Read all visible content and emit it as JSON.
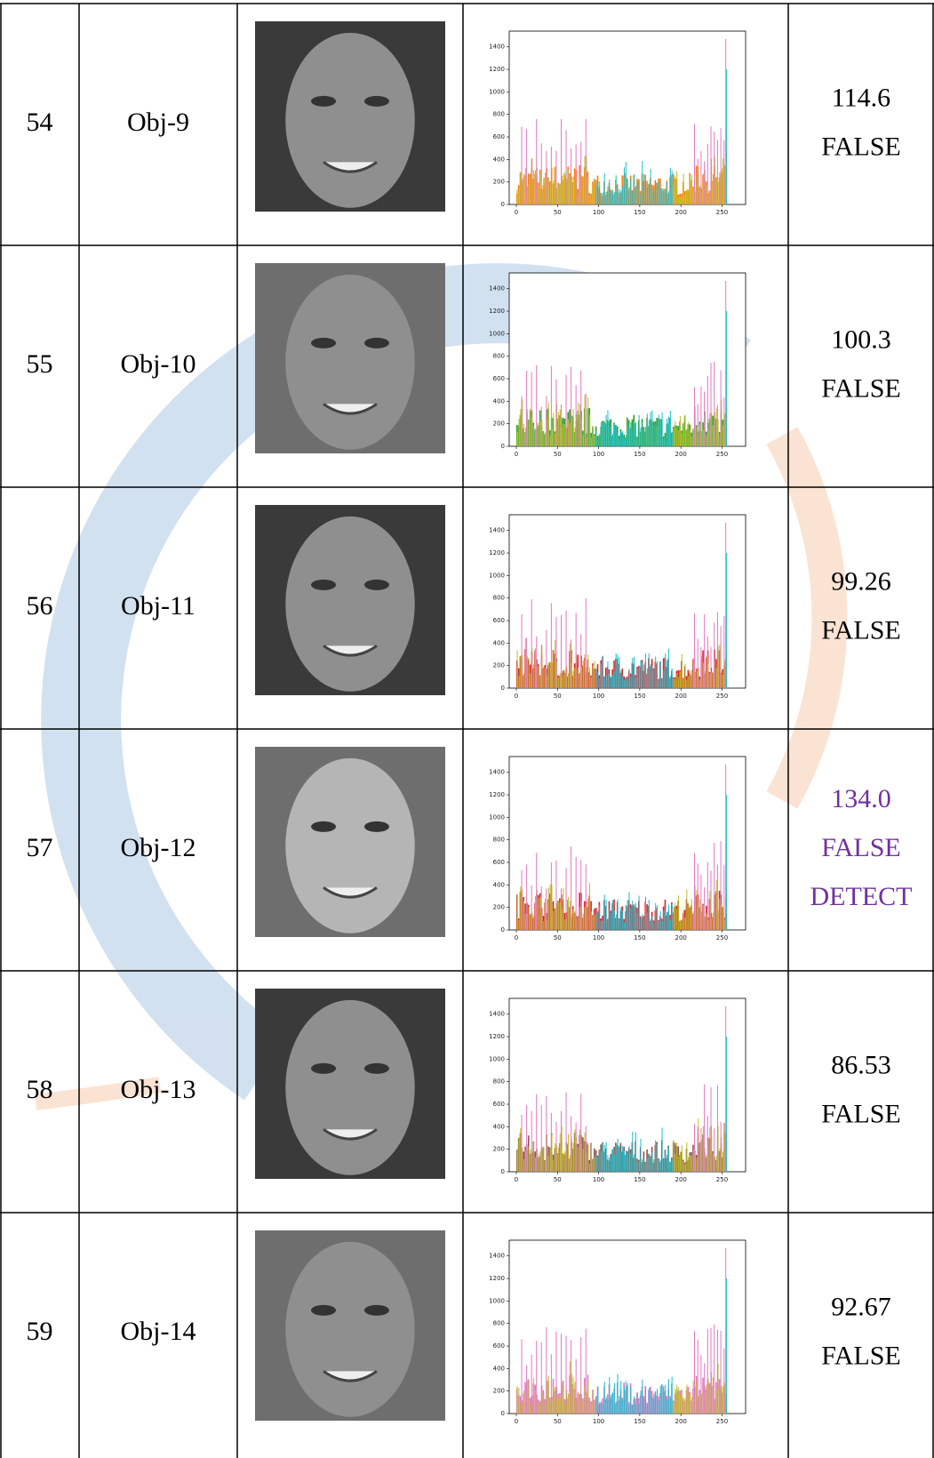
{
  "table": {
    "histogram": {
      "yticks": [
        0,
        200,
        400,
        600,
        800,
        1000,
        1200,
        1400
      ],
      "xticks": [
        0,
        50,
        100,
        150,
        200,
        250
      ]
    },
    "rows": [
      {
        "no": "54",
        "obj": "Obj-9",
        "result": [
          "114.6",
          "FALSE"
        ],
        "color": "#000000"
      },
      {
        "no": "55",
        "obj": "Obj-10",
        "result": [
          "100.3",
          "FALSE"
        ],
        "color": "#000000"
      },
      {
        "no": "56",
        "obj": "Obj-11",
        "result": [
          "99.26",
          "FALSE"
        ],
        "color": "#000000"
      },
      {
        "no": "57",
        "obj": "Obj-12",
        "result": [
          "134.0",
          "FALSE",
          "DETECT"
        ],
        "color": "#7030a0"
      },
      {
        "no": "58",
        "obj": "Obj-13",
        "result": [
          "86.53",
          "FALSE"
        ],
        "color": "#000000"
      },
      {
        "no": "59",
        "obj": "Obj-14",
        "result": [
          "92.67",
          "FALSE"
        ],
        "color": "#000000"
      }
    ]
  }
}
